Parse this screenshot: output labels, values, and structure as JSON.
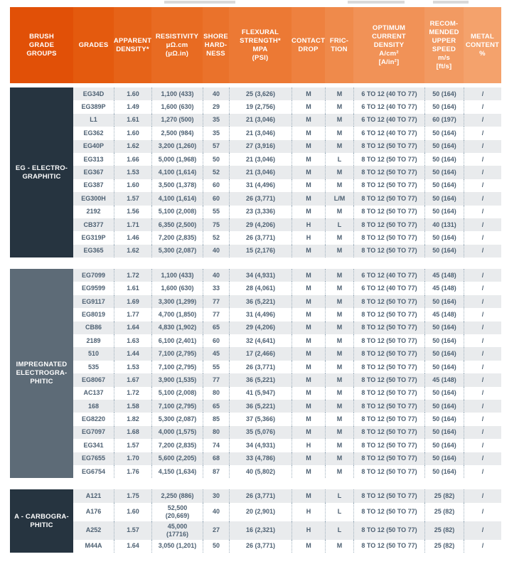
{
  "colors": {
    "header_gradient_start": "#e15007",
    "header_gradient_end": "#f4a26c",
    "group_dark": "#263440",
    "group_slate": "#5d6b77",
    "row_stripe": "#e9ebed",
    "body_text": "#4d6072"
  },
  "header": {
    "columns": [
      {
        "label": "BRUSH\nGRADE\nGROUPS"
      },
      {
        "label": "GRADES"
      },
      {
        "label": "APPARENT\nDENSITY*"
      },
      {
        "label": "RESISTIVITY\nμΩ.cm\n(μΩ.in)"
      },
      {
        "label": "SHORE\nHARD-\nNESS"
      },
      {
        "label": "FLEXURAL\nSTRENGTH*\nMPA\n(PSI)"
      },
      {
        "label": "CONTACT\nDROP"
      },
      {
        "label": "FRIC-\nTION"
      },
      {
        "label": "OPTIMUM\nCURRENT\nDENSITY\nA/cm²\n[A/in²]"
      },
      {
        "label": "RECOM-\nMENDED\nUPPER\nSPEED\nm/s\n[ft/s]"
      },
      {
        "label": "METAL\nCONTENT\n%"
      }
    ]
  },
  "table": {
    "groups": [
      {
        "id": "eg-electrographitic",
        "label": "EG - ELECTRO-\nGRAPHITIC",
        "theme": "dark",
        "rows": [
          [
            "EG34D",
            "1.60",
            "1,100 (433)",
            "40",
            "25 (3,626)",
            "M",
            "M",
            "6 TO 12 (40 TO 77)",
            "50 (164)",
            "/"
          ],
          [
            "EG389P",
            "1.49",
            "1,600 (630)",
            "29",
            "19 (2,756)",
            "M",
            "M",
            "6 TO 12 (40 TO 77)",
            "50 (164)",
            "/"
          ],
          [
            "L1",
            "1.61",
            "1,270 (500)",
            "35",
            "21 (3,046)",
            "M",
            "M",
            "6 TO 12 (40 TO 77)",
            "60 (197)",
            "/"
          ],
          [
            "EG362",
            "1.60",
            "2,500 (984)",
            "35",
            "21 (3,046)",
            "M",
            "M",
            "6 TO 12 (40 TO 77)",
            "50 (164)",
            "/"
          ],
          [
            "EG40P",
            "1.62",
            "3,200 (1,260)",
            "57",
            "27 (3,916)",
            "M",
            "M",
            "8 TO 12 (50 TO 77)",
            "50 (164)",
            "/"
          ],
          [
            "EG313",
            "1.66",
            "5,000 (1,968)",
            "50",
            "21 (3,046)",
            "M",
            "L",
            "8 TO 12 (50 TO 77)",
            "50 (164)",
            "/"
          ],
          [
            "EG367",
            "1.53",
            "4,100 (1,614)",
            "52",
            "21 (3,046)",
            "M",
            "M",
            "8 TO 12 (50 TO 77)",
            "50 (164)",
            "/"
          ],
          [
            "EG387",
            "1.60",
            "3,500 (1,378)",
            "60",
            "31 (4,496)",
            "M",
            "M",
            "8 TO 12 (50 TO 77)",
            "50 (164)",
            "/"
          ],
          [
            "EG300H",
            "1.57",
            "4,100 (1,614)",
            "60",
            "26 (3,771)",
            "M",
            "L/M",
            "8 TO 12 (50 TO 77)",
            "50 (164)",
            "/"
          ],
          [
            "2192",
            "1.56",
            "5,100 (2,008)",
            "55",
            "23 (3,336)",
            "M",
            "M",
            "8 TO 12 (50 TO 77)",
            "50 (164)",
            "/"
          ],
          [
            "CB377",
            "1.71",
            "6,350 (2,500)",
            "75",
            "29 (4,206)",
            "H",
            "L",
            "8 TO 12 (50 TO 77)",
            "40 (131)",
            "/"
          ],
          [
            "EG319P",
            "1.46",
            "7,200 (2,835)",
            "52",
            "26 (3,771)",
            "H",
            "M",
            "8 TO 12 (50 TO 77)",
            "50 (164)",
            "/"
          ],
          [
            "EG365",
            "1.62",
            "5,300 (2,087)",
            "40",
            "15 (2,176)",
            "M",
            "M",
            "8 TO 12 (50 TO 77)",
            "50 (164)",
            "/"
          ]
        ]
      },
      {
        "id": "impregnated-electrographitic",
        "label": "IMPREGNATED\nELECTROGRA-\nPHITIC",
        "theme": "slate",
        "rows": [
          [
            "EG7099",
            "1.72",
            "1,100 (433)",
            "40",
            "34 (4,931)",
            "M",
            "M",
            "6 TO 12 (40 TO 77)",
            "45 (148)",
            "/"
          ],
          [
            "EG9599",
            "1.61",
            "1,600 (630)",
            "33",
            "28 (4,061)",
            "M",
            "M",
            "6 TO 12 (40 TO 77)",
            "45 (148)",
            "/"
          ],
          [
            "EG9117",
            "1.69",
            "3,300 (1,299)",
            "77",
            "36 (5,221)",
            "M",
            "M",
            "8 TO 12 (50 TO 77)",
            "50 (164)",
            "/"
          ],
          [
            "EG8019",
            "1.77",
            "4,700 (1,850)",
            "77",
            "31 (4,496)",
            "M",
            "M",
            "8 TO 12 (50 TO 77)",
            "45 (148)",
            "/"
          ],
          [
            "CB86",
            "1.64",
            "4,830 (1,902)",
            "65",
            "29 (4,206)",
            "M",
            "M",
            "8 TO 12 (50 TO 77)",
            "50 (164)",
            "/"
          ],
          [
            "2189",
            "1.63",
            "6,100 (2,401)",
            "60",
            "32 (4,641)",
            "M",
            "M",
            "8 TO 12 (50 TO 77)",
            "50 (164)",
            "/"
          ],
          [
            "510",
            "1.44",
            "7,100 (2,795)",
            "45",
            "17 (2,466)",
            "M",
            "M",
            "8 TO 12 (50 TO 77)",
            "50 (164)",
            "/"
          ],
          [
            "535",
            "1.53",
            "7,100 (2,795)",
            "55",
            "26 (3,771)",
            "M",
            "M",
            "8 TO 12 (50 TO 77)",
            "50 (164)",
            "/"
          ],
          [
            "EG8067",
            "1.67",
            "3,900 (1,535)",
            "77",
            "36 (5,221)",
            "M",
            "M",
            "8 TO 12 (50 TO 77)",
            "45 (148)",
            "/"
          ],
          [
            "AC137",
            "1.72",
            "5,100 (2,008)",
            "80",
            "41 (5,947)",
            "M",
            "M",
            "8 TO 12 (50 TO 77)",
            "50 (164)",
            "/"
          ],
          [
            "168",
            "1.58",
            "7,100 (2,795)",
            "65",
            "36 (5,221)",
            "M",
            "M",
            "8 TO 12 (50 TO 77)",
            "50 (164)",
            "/"
          ],
          [
            "EG8220",
            "1.82",
            "5,300 (2,087)",
            "85",
            "37 (5,366)",
            "M",
            "M",
            "8 TO 12 (50 TO 77)",
            "50 (164)",
            "/"
          ],
          [
            "EG7097",
            "1.68",
            "4,000 (1,575)",
            "80",
            "35 (5,076)",
            "M",
            "M",
            "8 TO 12 (50 TO 77)",
            "50 (164)",
            "/"
          ],
          [
            "EG341",
            "1.57",
            "7,200 (2,835)",
            "74",
            "34 (4,931)",
            "H",
            "M",
            "8 TO 12 (50 TO 77)",
            "50 (164)",
            "/"
          ],
          [
            "EG7655",
            "1.70",
            "5,600 (2,205)",
            "68",
            "33 (4,786)",
            "M",
            "M",
            "8 TO 12 (50 TO 77)",
            "50 (164)",
            "/"
          ],
          [
            "EG6754",
            "1.76",
            "4,150 (1,634)",
            "87",
            "40 (5,802)",
            "M",
            "M",
            "8 TO 12 (50 TO 77)",
            "50 (164)",
            "/"
          ]
        ]
      },
      {
        "id": "a-carbographitic",
        "label": "A - CARBOGRA-\nPHITIC",
        "theme": "dark",
        "rows": [
          [
            "A121",
            "1.75",
            "2,250 (886)",
            "30",
            "26 (3,771)",
            "M",
            "L",
            "8 TO 12 (50 TO 77)",
            "25 (82)",
            "/"
          ],
          [
            "A176",
            "1.60",
            "52,500\n(20,669)",
            "40",
            "20 (2,901)",
            "H",
            "L",
            "8 TO 12 (50 TO 77)",
            "25 (82)",
            "/"
          ],
          [
            "A252",
            "1.57",
            "45,000\n(17716)",
            "27",
            "16 (2,321)",
            "H",
            "L",
            "8 TO 12 (50 TO 77)",
            "25 (82)",
            "/"
          ],
          [
            "M44A",
            "1.64",
            "3,050 (1,201)",
            "50",
            "26 (3,771)",
            "M",
            "M",
            "8 TO 12 (50 TO 77)",
            "25 (82)",
            "/"
          ]
        ]
      }
    ]
  }
}
